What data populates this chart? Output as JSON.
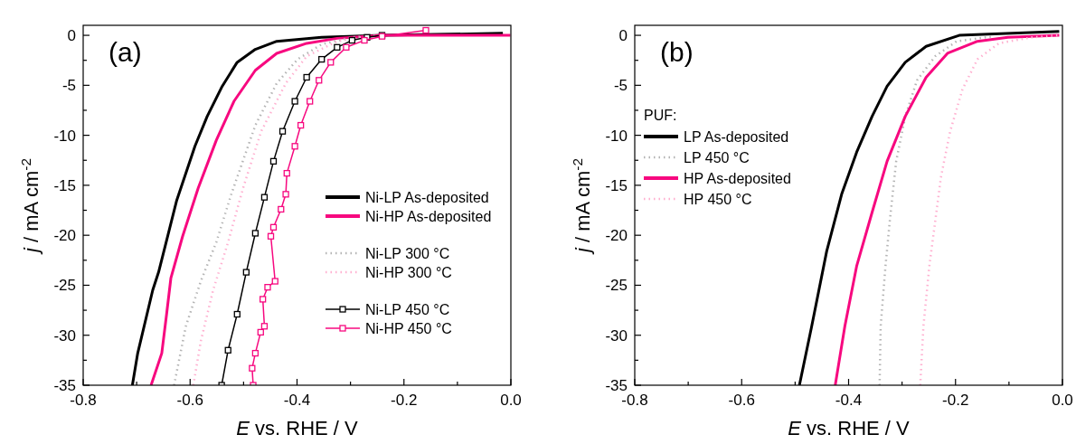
{
  "chart_data": [
    {
      "type": "line",
      "annotations": [
        "(a)"
      ],
      "xlabel": "E vs. RHE / V",
      "ylabel": "j / mA cm$^{-2}$",
      "xlim": [
        -0.8,
        0
      ],
      "ylim": [
        -35,
        1
      ],
      "xticks": [
        -0.8,
        {
          "value": -0.7,
          "label": null
        },
        -0.6,
        {
          "value": -0.5,
          "label": null
        },
        -0.4,
        {
          "value": -0.3,
          "label": null
        },
        -0.2,
        {
          "value": -0.1,
          "label": null
        },
        {
          "value": 0,
          "label": "0.0"
        }
      ],
      "yticks": [
        0,
        {
          "value": -2.5,
          "label": null
        },
        -5,
        {
          "value": -7.5,
          "label": null
        },
        -10,
        {
          "value": -12.5,
          "label": null
        },
        -15,
        {
          "value": -17.5,
          "label": null
        },
        -20,
        {
          "value": -22.5,
          "label": null
        },
        -25,
        {
          "value": -27.5,
          "label": null
        },
        -30,
        {
          "value": -32.5,
          "label": null
        },
        -35
      ],
      "grid": false,
      "legend": "right",
      "series": [
        {
          "name": "Ni-LP As-deposited",
          "color": "#000000",
          "line_style": "solid",
          "marker": "none",
          "x": [
            -0.708,
            -0.698,
            -0.67,
            -0.659,
            -0.625,
            -0.591,
            -0.568,
            -0.54,
            -0.512,
            -0.478,
            -0.438,
            -0.354,
            -0.241,
            -0.015
          ],
          "values": [
            -35,
            -31.8,
            -25.5,
            -23.7,
            -16.5,
            -11.1,
            -8.1,
            -5.1,
            -2.7,
            -1.4,
            -0.6,
            -0.2,
            0,
            0.2
          ]
        },
        {
          "name": "Ni-HP As-deposited",
          "color": "#f7087f",
          "line_style": "solid",
          "marker": "none",
          "x": [
            -0.673,
            -0.653,
            -0.644,
            -0.636,
            -0.614,
            -0.585,
            -0.551,
            -0.518,
            -0.478,
            -0.438,
            -0.382,
            -0.325,
            -0.241,
            -0.001
          ],
          "values": [
            -35,
            -31.8,
            -27.9,
            -24.3,
            -20.1,
            -15.3,
            -10.5,
            -6.6,
            -3.5,
            -1.8,
            -0.8,
            -0.3,
            0,
            0
          ]
        },
        {
          "name": "Ni-LP 300 °C",
          "color": "#b4b4b4",
          "line_style": "dotted",
          "marker": "none",
          "x": [
            -0.63,
            -0.608,
            -0.58,
            -0.551,
            -0.523,
            -0.478,
            -0.438,
            -0.399,
            -0.354,
            -0.297,
            -0.241
          ],
          "values": [
            -35,
            -29.1,
            -24.6,
            -20.7,
            -15.9,
            -9,
            -4.8,
            -2.4,
            -0.9,
            -0.2,
            0
          ]
        },
        {
          "name": "Ni-HP 300 °C",
          "color": "#ffb0d0",
          "line_style": "dotted",
          "marker": "none",
          "x": [
            -0.594,
            -0.58,
            -0.557,
            -0.529,
            -0.501,
            -0.467,
            -0.421,
            -0.382,
            -0.325,
            -0.269
          ],
          "values": [
            -35,
            -30.6,
            -25.5,
            -20.7,
            -15.3,
            -9.6,
            -4.8,
            -2.1,
            -0.6,
            -0.1
          ]
        },
        {
          "name": "Ni-LP 450 °C",
          "color": "#000000",
          "line_style": "solid",
          "marker": "square",
          "x": [
            -0.541,
            -0.529,
            -0.512,
            -0.495,
            -0.478,
            -0.461,
            -0.444,
            -0.427,
            -0.404,
            -0.382,
            -0.354,
            -0.325,
            -0.297,
            -0.269,
            -0.241
          ],
          "values": [
            -35,
            -31.5,
            -27.9,
            -23.7,
            -19.8,
            -16.2,
            -12.6,
            -9.6,
            -6.6,
            -4.2,
            -2.4,
            -1.2,
            -0.5,
            -0.2,
            0
          ]
        },
        {
          "name": "Ni-HP 450 °C",
          "color": "#f7087f",
          "line_style": "solid",
          "marker": "square",
          "x": [
            -0.482,
            -0.484,
            -0.478,
            -0.468,
            -0.461,
            -0.464,
            -0.455,
            -0.441,
            -0.449,
            -0.444,
            -0.43,
            -0.421,
            -0.419,
            -0.404,
            -0.393,
            -0.376,
            -0.359,
            -0.337,
            -0.308,
            -0.274,
            -0.241,
            -0.159
          ],
          "values": [
            -35,
            -33.3,
            -31.8,
            -29.7,
            -29.1,
            -26.4,
            -25.2,
            -24.6,
            -20.1,
            -19.2,
            -17.4,
            -15.9,
            -13.8,
            -11.1,
            -9,
            -6.6,
            -4.5,
            -2.7,
            -1.2,
            -0.5,
            -0.1,
            0.5
          ]
        }
      ]
    },
    {
      "type": "line",
      "annotations": [
        "(b)"
      ],
      "xlabel": "E vs. RHE / V",
      "ylabel": "j / mA cm$^{-2}$",
      "xlim": [
        -0.8,
        0
      ],
      "ylim": [
        -35,
        1
      ],
      "legend_title": "PUF:",
      "xticks": [
        -0.8,
        {
          "value": -0.7,
          "label": null
        },
        -0.6,
        {
          "value": -0.5,
          "label": null
        },
        -0.4,
        {
          "value": -0.3,
          "label": null
        },
        -0.2,
        {
          "value": -0.1,
          "label": null
        },
        {
          "value": 0,
          "label": "0.0"
        }
      ],
      "yticks": [
        0,
        {
          "value": -2.5,
          "label": null
        },
        -5,
        {
          "value": -7.5,
          "label": null
        },
        -10,
        {
          "value": -12.5,
          "label": null
        },
        -15,
        {
          "value": -17.5,
          "label": null
        },
        -20,
        {
          "value": -22.5,
          "label": null
        },
        -25,
        {
          "value": -27.5,
          "label": null
        },
        -30,
        {
          "value": -32.5,
          "label": null
        },
        -35
      ],
      "grid": false,
      "legend": "top left",
      "series": [
        {
          "name": "LP As-deposited",
          "color": "#000000",
          "line_style": "solid",
          "marker": "none",
          "x": [
            -0.492,
            -0.469,
            -0.441,
            -0.413,
            -0.385,
            -0.356,
            -0.328,
            -0.294,
            -0.255,
            -0.193,
            -0.006
          ],
          "values": [
            -35,
            -29.1,
            -21.6,
            -15.9,
            -11.7,
            -8.1,
            -5.1,
            -2.7,
            -1.1,
            0,
            0.4
          ]
        },
        {
          "name": "LP 450 °C",
          "color": "#b4b4b4",
          "line_style": "dotted",
          "marker": "none",
          "x": [
            -0.342,
            -0.34,
            -0.331,
            -0.323,
            -0.311,
            -0.294,
            -0.272,
            -0.238,
            -0.198,
            -0.13
          ],
          "values": [
            -35,
            -29.1,
            -23.1,
            -18.6,
            -12.6,
            -8.1,
            -4.5,
            -2.1,
            -0.6,
            -0.1
          ]
        },
        {
          "name": "HP As-deposited",
          "color": "#f7087f",
          "line_style": "solid",
          "marker": "none",
          "x": [
            -0.425,
            -0.407,
            -0.385,
            -0.356,
            -0.328,
            -0.294,
            -0.255,
            -0.215,
            -0.159,
            -0.102,
            -0.006
          ],
          "values": [
            -35,
            -29.1,
            -23.1,
            -17.7,
            -12.6,
            -8.1,
            -4.2,
            -1.8,
            -0.6,
            -0.2,
            0
          ]
        },
        {
          "name": "HP 450 °C",
          "color": "#ffb0d0",
          "line_style": "dotted",
          "marker": "none",
          "x": [
            -0.266,
            -0.26,
            -0.249,
            -0.238,
            -0.227,
            -0.21,
            -0.187,
            -0.159,
            -0.119,
            -0.057,
            -0.006
          ],
          "values": [
            -35,
            -29.1,
            -23.1,
            -18.6,
            -14.1,
            -9.6,
            -5.4,
            -2.4,
            -0.8,
            -0.2,
            0
          ]
        }
      ]
    }
  ]
}
